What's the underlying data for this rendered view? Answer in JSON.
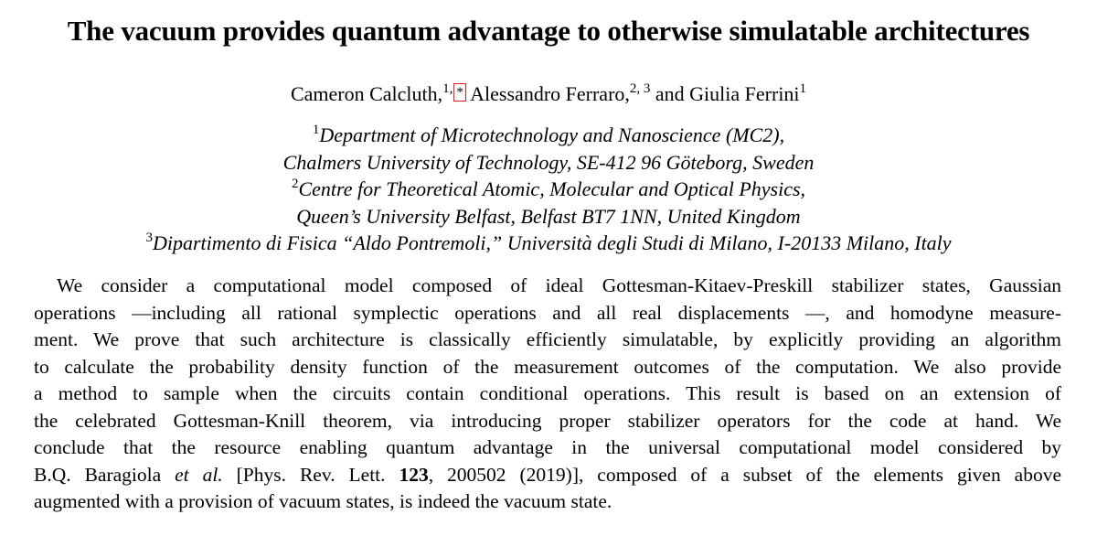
{
  "title": "The vacuum provides quantum advantage to otherwise simulatable architectures",
  "authors": [
    {
      "name": "Cameron Calcluth,",
      "sup": "1,",
      "mark": "*"
    },
    {
      "name": "Alessandro Ferraro,",
      "sup": "2, 3"
    },
    {
      "prefix": "and",
      "name": "Giulia Ferrini",
      "sup": "1"
    }
  ],
  "affiliations": [
    {
      "sup": "1",
      "text": "Department of Microtechnology and Nanoscience (MC2),"
    },
    {
      "sup": "",
      "text": "Chalmers University of Technology, SE-412 96 Göteborg, Sweden"
    },
    {
      "sup": "2",
      "text": "Centre for Theoretical Atomic, Molecular and Optical Physics,"
    },
    {
      "sup": "",
      "text": "Queen’s University Belfast, Belfast BT7 1NN, United Kingdom"
    },
    {
      "sup": "3",
      "text": "Dipartimento di Fisica “Aldo Pontremoli,” Università degli Studi di Milano, I-20133 Milano, Italy"
    }
  ],
  "abstract": {
    "lines": [
      "We consider a computational model composed of ideal Gottesman-Kitaev-Preskill stabilizer states, Gaussian",
      "operations —including all rational symplectic operations and all real displacements —, and homodyne measure-",
      "ment. We prove that such architecture is classically efficiently simulatable, by explicitly providing an algorithm",
      "to calculate the probability density function of the measurement outcomes of the computation. We also provide",
      "a method to sample when the circuits contain conditional operations.  This result is based on an extension of",
      "the celebrated Gottesman-Knill theorem, via introducing proper stabilizer operators for the code at hand.  We",
      "conclude that the resource enabling quantum advantage in the universal computational model considered by"
    ],
    "line8": {
      "pre": "B.Q. Baragiola ",
      "etal": "et al.",
      "mid": " [Phys. Rev. Lett. ",
      "volume": "123",
      "post": ", 200502 (2019)], composed of a subset of the elements given above"
    },
    "last_line": "augmented with a provision of vacuum states, is indeed the vacuum state."
  },
  "colors": {
    "footnote_box": "#e0201b"
  }
}
